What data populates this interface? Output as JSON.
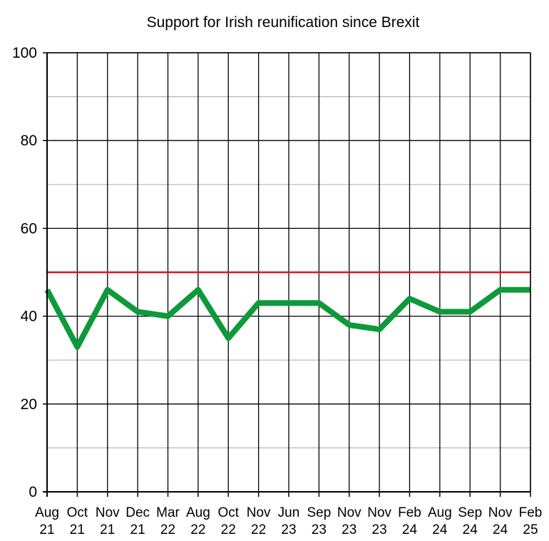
{
  "chart_data": {
    "type": "line",
    "title": "Support for Irish reunification since Brexit",
    "xlabel": "",
    "ylabel": "",
    "ylim": [
      0,
      100
    ],
    "yticks": [
      0,
      20,
      40,
      60,
      80,
      100
    ],
    "y_minor_grid": [
      10,
      30,
      50,
      70,
      90
    ],
    "grid": true,
    "legend": "none",
    "categories": [
      {
        "month": "Aug",
        "year": "21"
      },
      {
        "month": "Oct",
        "year": "21"
      },
      {
        "month": "Nov",
        "year": "21"
      },
      {
        "month": "Dec",
        "year": "21"
      },
      {
        "month": "Mar",
        "year": "22"
      },
      {
        "month": "Aug",
        "year": "22"
      },
      {
        "month": "Oct",
        "year": "22"
      },
      {
        "month": "Nov",
        "year": "22"
      },
      {
        "month": "Jun",
        "year": "23"
      },
      {
        "month": "Sep",
        "year": "23"
      },
      {
        "month": "Nov",
        "year": "23"
      },
      {
        "month": "Nov",
        "year": "23"
      },
      {
        "month": "Feb",
        "year": "24"
      },
      {
        "month": "Aug",
        "year": "24"
      },
      {
        "month": "Sep",
        "year": "24"
      },
      {
        "month": "Nov",
        "year": "24"
      },
      {
        "month": "Feb",
        "year": "25"
      }
    ],
    "series": [
      {
        "color": "#0e9a3a",
        "values": [
          46,
          33,
          46,
          41,
          40,
          46,
          35,
          43,
          43,
          43,
          38,
          37,
          44,
          41,
          41,
          46,
          46
        ]
      }
    ],
    "reference_line": {
      "value": 50,
      "color": "#e0141c"
    },
    "colors": {
      "major_grid": "#000000",
      "minor_grid": "#b5b5b5",
      "axis": "#000000",
      "background": "#ffffff"
    }
  }
}
